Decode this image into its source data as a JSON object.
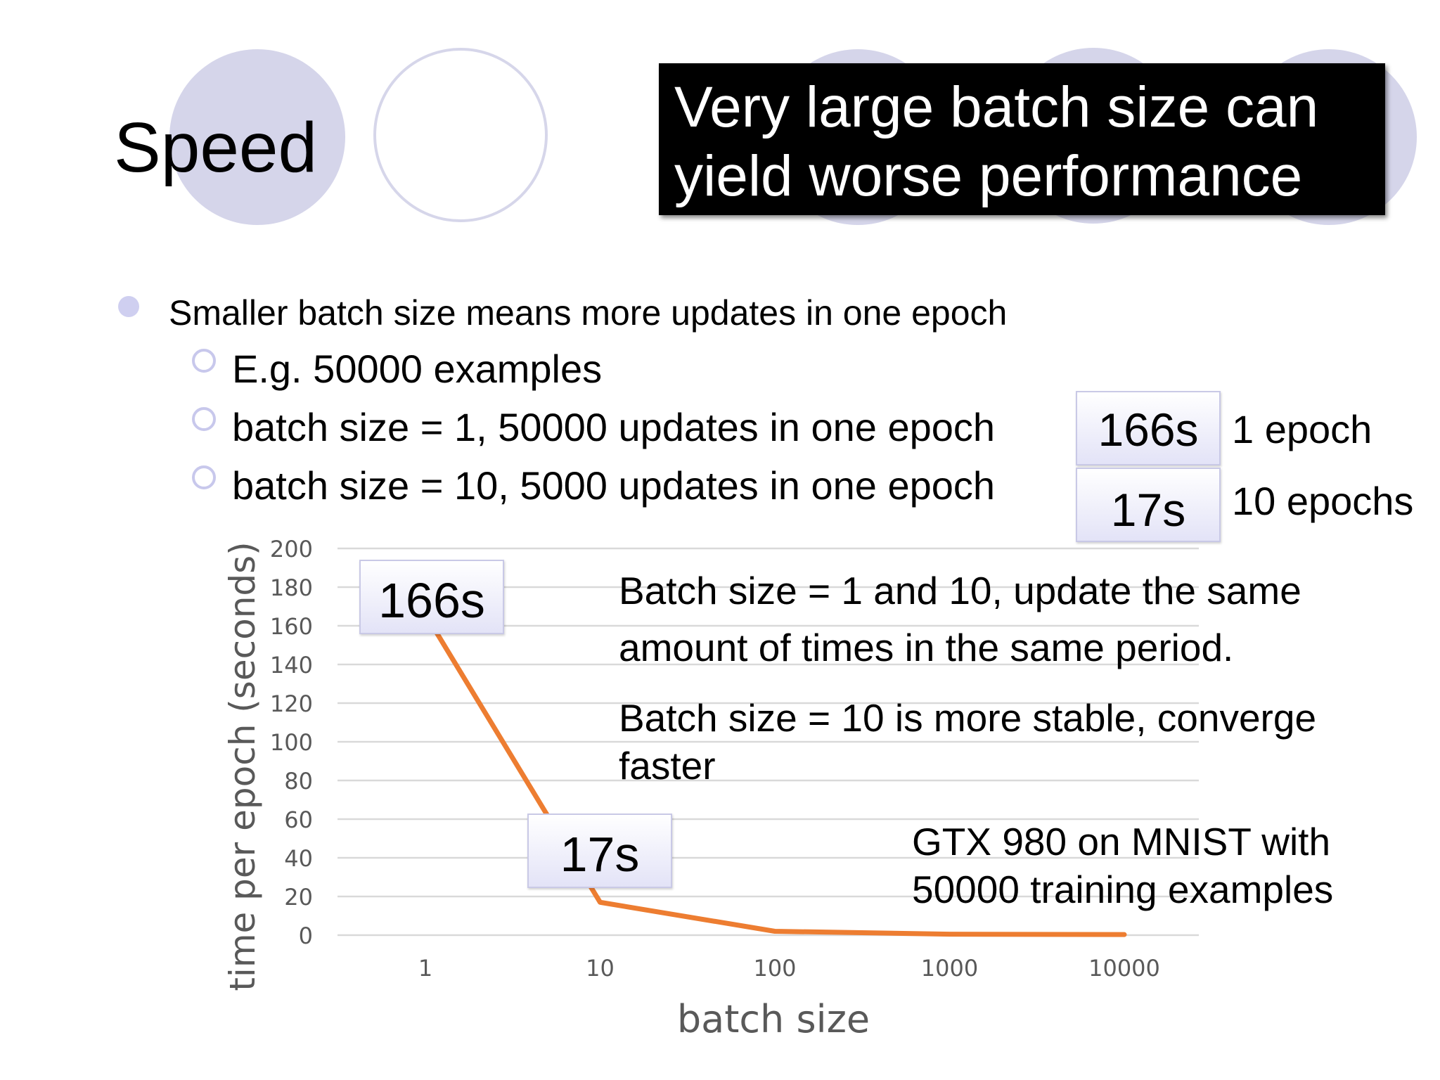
{
  "slide": {
    "title": "Speed",
    "callout": [
      "Very large batch size can",
      "yield worse performance"
    ]
  },
  "bullets": {
    "main": "Smaller batch size means more updates in one epoch",
    "sub": [
      "E.g. 50000 examples",
      "batch size = 1, 50000 updates in one epoch",
      "batch size = 10, 5000 updates in one epoch"
    ]
  },
  "timing": {
    "boxes": [
      "166s",
      "17s"
    ],
    "labels": [
      "1 epoch",
      "10 epochs"
    ]
  },
  "annotations": {
    "same_updates": [
      "Batch size = 1 and 10, update the same",
      "amount of times in the same period."
    ],
    "stable": [
      "Batch size = 10 is more stable, converge",
      "faster"
    ],
    "setup": [
      "GTX 980 on MNIST with",
      "50000 training examples"
    ],
    "point_labels": [
      "166s",
      "17s"
    ]
  },
  "colors": {
    "line": "#ed7d31",
    "grid": "#d9d9d9",
    "tick": "#595959",
    "circle": "#d5d5ea",
    "callout_bg": "#000000"
  },
  "chart_data": {
    "type": "line",
    "title": "",
    "xlabel": "batch size",
    "ylabel": "time per epoch (seconds)",
    "categories": [
      "1",
      "10",
      "100",
      "1000",
      "10000"
    ],
    "values": [
      166,
      17,
      2,
      0.5,
      0.3
    ],
    "ylim": [
      0,
      200
    ],
    "yticks": [
      0,
      20,
      40,
      60,
      80,
      100,
      120,
      140,
      160,
      180,
      200
    ],
    "grid": true
  }
}
